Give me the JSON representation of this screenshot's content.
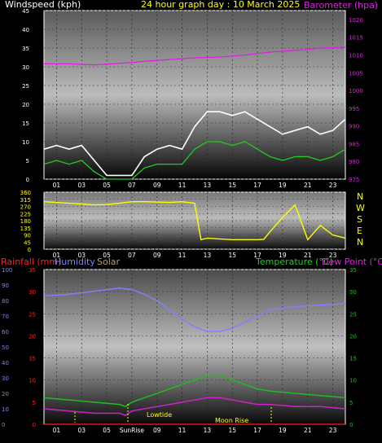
{
  "header": {
    "left": "Windspeed (kph)",
    "center": "24 hour graph day : 10 March 2025",
    "right": "Barometer (hpa)"
  },
  "direction_labels": [
    "N",
    "W",
    "S",
    "E",
    "N"
  ],
  "bottom_header": {
    "rainfall": "Rainfall (mm)",
    "humidity": "Humidity",
    "solar": "Solar",
    "temperature": "Temperature (°C)",
    "dewpoint": "Dew Point (°C)"
  },
  "events": {
    "lowtide": "Lowtide",
    "sunrise": "SunRise",
    "moonrise": "Moon Rise"
  },
  "colors": {
    "windgust": "#ffffff",
    "windavg": "#22cc22",
    "barometer": "#e020e0",
    "direction": "#ffff00",
    "humidity": "#8080ff",
    "temperature": "#22bb22",
    "dewpoint": "#cc22cc",
    "rainfall": "#ff2020",
    "solar": "#b8a070"
  },
  "chart_data": [
    {
      "type": "line",
      "title": "24 hour graph day : 10 March 2025",
      "ylabel": "Windspeed (kph)",
      "y2label": "Barometer (hpa)",
      "x_ticks": [
        "01",
        "03",
        "05",
        "07",
        "09",
        "11",
        "13",
        "15",
        "17",
        "19",
        "21",
        "23"
      ],
      "ylim": [
        0,
        45
      ],
      "yticks": [
        0,
        5,
        10,
        15,
        20,
        25,
        30,
        35,
        40,
        45
      ],
      "y2lim": [
        975,
        1022.5
      ],
      "y2ticks": [
        975,
        980,
        985,
        990,
        995,
        1000,
        1005,
        1010,
        1015,
        1020
      ],
      "series": [
        {
          "name": "Windspeed gust",
          "x": [
            0,
            1,
            2,
            3,
            4,
            5,
            6,
            7,
            8,
            9,
            10,
            11,
            12,
            13,
            14,
            15,
            16,
            17,
            18,
            19,
            20,
            21,
            22,
            23,
            24
          ],
          "values": [
            8,
            9,
            8,
            9,
            5,
            1,
            1,
            1,
            6,
            8,
            9,
            8,
            14,
            18,
            18,
            17,
            18,
            16,
            14,
            12,
            13,
            14,
            12,
            13,
            16
          ]
        },
        {
          "name": "Windspeed average",
          "x": [
            0,
            1,
            2,
            3,
            4,
            5,
            6,
            7,
            8,
            9,
            10,
            11,
            12,
            13,
            14,
            15,
            16,
            17,
            18,
            19,
            20,
            21,
            22,
            23,
            24
          ],
          "values": [
            4,
            5,
            4,
            5,
            2,
            0,
            0,
            0,
            3,
            4,
            4,
            4,
            8,
            10,
            10,
            9,
            10,
            8,
            6,
            5,
            6,
            6,
            5,
            6,
            8
          ]
        },
        {
          "name": "Barometer",
          "x": [
            0,
            2,
            4,
            6,
            8,
            10,
            12,
            14,
            16,
            18,
            20,
            22,
            24
          ],
          "values": [
            1007.5,
            1007.5,
            1007.2,
            1007.6,
            1008.2,
            1008.7,
            1009.2,
            1009.4,
            1010.0,
            1010.8,
            1011.3,
            1011.9,
            1012.2
          ]
        }
      ]
    },
    {
      "type": "line",
      "ylabel": "Wind direction",
      "x_ticks": [
        "01",
        "03",
        "05",
        "07",
        "09",
        "11",
        "13",
        "15",
        "17",
        "19",
        "21",
        "23"
      ],
      "ylim": [
        0,
        360
      ],
      "yticks": [
        0,
        45,
        90,
        135,
        180,
        225,
        270,
        315,
        360
      ],
      "series": [
        {
          "name": "Wind direction",
          "x": [
            0,
            1,
            2,
            3,
            4,
            5,
            6,
            7,
            8,
            9,
            10,
            11,
            12,
            12.5,
            13,
            14,
            15,
            16,
            17,
            17.5,
            18,
            19,
            20,
            21,
            22,
            23,
            24
          ],
          "values": [
            300,
            295,
            290,
            285,
            280,
            282,
            290,
            300,
            300,
            298,
            295,
            300,
            290,
            60,
            70,
            65,
            60,
            60,
            60,
            62,
            110,
            200,
            280,
            60,
            150,
            90,
            70
          ]
        }
      ]
    },
    {
      "type": "line",
      "ylabel": "Rainfall (mm)",
      "x_ticks": [
        "01",
        "03",
        "05",
        "SunRise",
        "09",
        "11",
        "13",
        "15",
        "17",
        "19",
        "21",
        "23"
      ],
      "ylim": [
        0,
        35
      ],
      "yticks": [
        0,
        5,
        10,
        15,
        20,
        25,
        30,
        35
      ],
      "humidity_ticks": [
        0,
        10,
        20,
        30,
        40,
        50,
        60,
        70,
        80,
        90,
        100
      ],
      "series": [
        {
          "name": "Humidity",
          "x": [
            0,
            2,
            4,
            6,
            7,
            8,
            9,
            10,
            11,
            12,
            13,
            14,
            15,
            16,
            17,
            18,
            20,
            22,
            24
          ],
          "values": [
            83,
            84,
            86,
            88,
            87,
            84,
            80,
            74,
            68,
            63,
            60,
            60,
            62,
            66,
            70,
            74,
            76,
            77,
            78
          ]
        },
        {
          "name": "Temperature",
          "x": [
            0,
            2,
            4,
            6,
            6.5,
            7,
            8,
            9,
            10,
            11,
            12,
            13,
            14,
            15,
            16,
            17,
            18,
            20,
            22,
            24
          ],
          "values": [
            6,
            5.5,
            5,
            4.5,
            4,
            5,
            6,
            7,
            8,
            9,
            10,
            11,
            11,
            10,
            9,
            8,
            7.5,
            7,
            6.5,
            6
          ]
        },
        {
          "name": "Dew Point",
          "x": [
            0,
            2,
            4,
            6,
            6.5,
            7,
            8,
            9,
            10,
            11,
            12,
            13,
            14,
            15,
            16,
            17,
            18,
            20,
            22,
            24
          ],
          "values": [
            3.5,
            3,
            2.5,
            2.5,
            2,
            3,
            3.5,
            4,
            4.5,
            5,
            5.5,
            6,
            6,
            5.5,
            5,
            4.5,
            4.5,
            4,
            4,
            3.5
          ]
        },
        {
          "name": "Rainfall",
          "x": [
            0,
            24
          ],
          "values": [
            0,
            0
          ]
        }
      ]
    }
  ]
}
